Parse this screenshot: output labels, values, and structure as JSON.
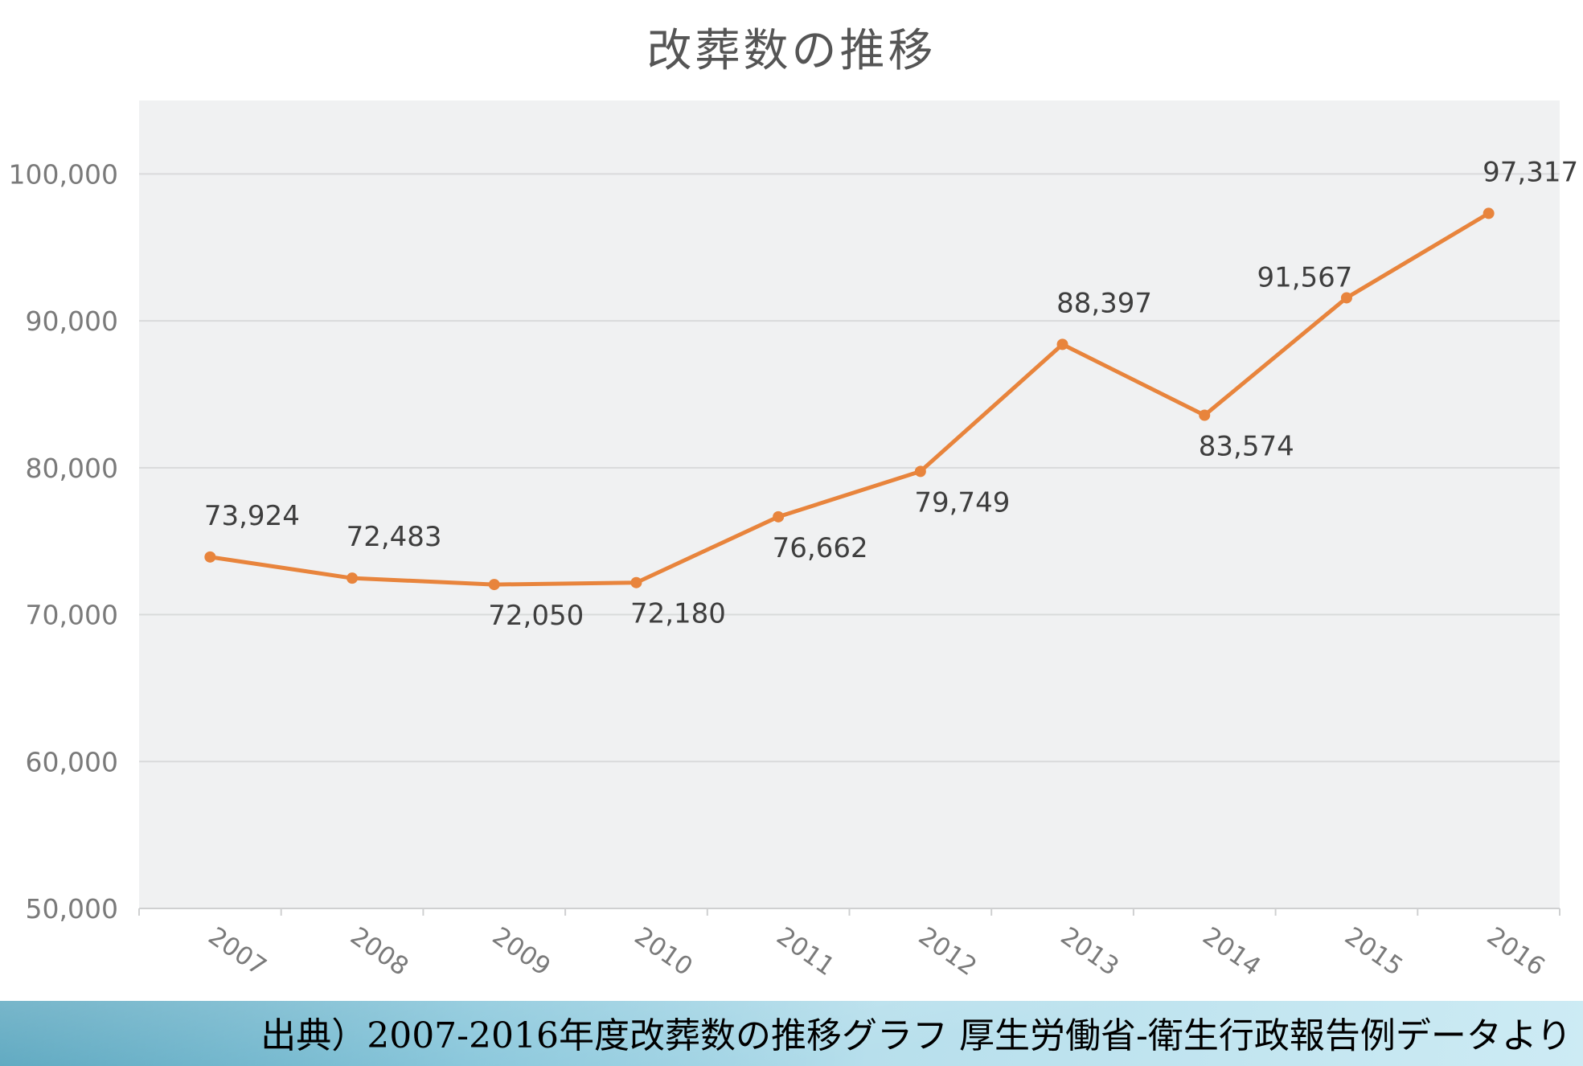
{
  "chart_data": {
    "type": "line",
    "title": "改葬数の推移",
    "xlabel": "",
    "ylabel": "",
    "categories": [
      "2007",
      "2008",
      "2009",
      "2010",
      "2011",
      "2012",
      "2013",
      "2014",
      "2015",
      "2016"
    ],
    "series": [
      {
        "values": [
          73924,
          72483,
          72050,
          72180,
          76662,
          79749,
          88397,
          83574,
          91567,
          97317
        ],
        "data_labels": [
          "73,924",
          "72,483",
          "72,050",
          "72,180",
          "76,662",
          "79,749",
          "88,397",
          "83,574",
          "91,567",
          "97,317"
        ],
        "color": "#e8843c"
      }
    ],
    "ylim": [
      50000,
      105000
    ],
    "y_ticks": [
      50000,
      60000,
      70000,
      80000,
      90000,
      100000
    ],
    "y_tick_labels": [
      "50,000",
      "60,000",
      "70,000",
      "80,000",
      "90,000",
      "100,000"
    ],
    "grid": true,
    "legend": "none",
    "plot_background": "#f0f1f2",
    "gridline_color": "#d9dadb"
  },
  "footer": {
    "source_note": "出典）2007-2016年度改葬数の推移グラフ 厚生労働省-衛生行政報告例データより"
  }
}
